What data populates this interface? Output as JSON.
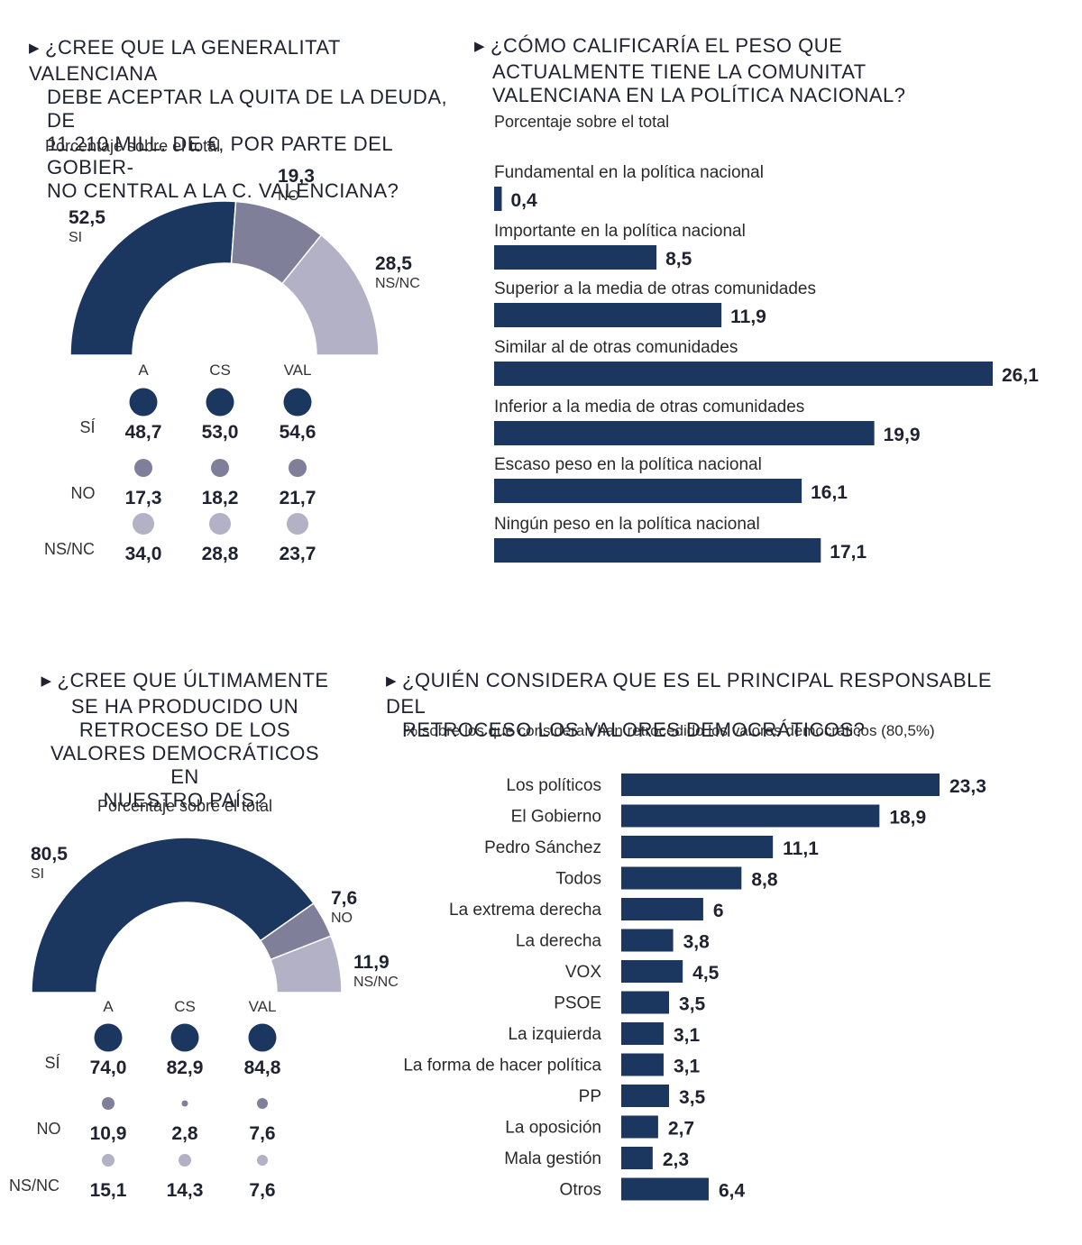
{
  "colors": {
    "si": "#1b365f",
    "no": "#807f99",
    "nsnc": "#b2b1c5",
    "bar": "#1b365f",
    "text": "#1f2230"
  },
  "chart_data": [
    {
      "type": "pie",
      "id": "c1",
      "title": "¿CREE QUE LA GENERALITAT VALENCIANA DEBE ACEPTAR LA QUITA DE LA DEUDA, DE 11.210 MILL. DE €, POR PARTE DEL GOBIERNO CENTRAL A LA C. VALENCIANA?",
      "title_lines": [
        "¿CREE QUE LA GENERALITAT VALENCIANA",
        "DEBE ACEPTAR LA QUITA DE LA DEUDA, DE",
        "11.210 MILL. DE €, POR PARTE DEL GOBIER-",
        "NO CENTRAL A LA C. VALENCIANA?"
      ],
      "subtitle": "Porcentaje sobre el total",
      "slices": [
        {
          "label": "SI",
          "value": 52.5,
          "value_text": "52,5"
        },
        {
          "label": "NO",
          "value": 19.3,
          "value_text": "19,3"
        },
        {
          "label": "NS/NC",
          "value": 28.5,
          "value_text": "28,5"
        }
      ],
      "breakdown": {
        "columns": [
          "A",
          "CS",
          "VAL"
        ],
        "rows": [
          {
            "label": "SÍ",
            "values": [
              48.7,
              53.0,
              54.6
            ],
            "values_text": [
              "48,7",
              "53,0",
              "54,6"
            ]
          },
          {
            "label": "NO",
            "values": [
              17.3,
              18.2,
              21.7
            ],
            "values_text": [
              "17,3",
              "18,2",
              "21,7"
            ]
          },
          {
            "label": "NS/NC",
            "values": [
              34.0,
              28.8,
              23.7
            ],
            "values_text": [
              "34,0",
              "28,8",
              "23,7"
            ]
          }
        ]
      }
    },
    {
      "type": "bar",
      "id": "c2",
      "title": "¿CÓMO CALIFICARÍA EL PESO QUE ACTUALMENTE TIENE LA COMUNITAT VALENCIANA EN LA POLÍTICA NACIONAL?",
      "title_lines": [
        "¿CÓMO CALIFICARÍA EL PESO QUE",
        "ACTUALMENTE TIENE LA COMUNITAT",
        "VALENCIANA EN LA POLÍTICA NACIONAL?"
      ],
      "subtitle": "Porcentaje sobre el total",
      "categories": [
        "Fundamental en la política nacional",
        "Importante en la política nacional",
        "Superior a la media de otras comunidades",
        "Similar al de otras comunidades",
        "Inferior a la media de otras comunidades",
        "Escaso peso en la política nacional",
        "Ningún peso en la política nacional"
      ],
      "values": [
        0.4,
        8.5,
        11.9,
        26.1,
        19.9,
        16.1,
        17.1
      ],
      "values_text": [
        "0,4",
        "8,5",
        "11,9",
        "26,1",
        "19,9",
        "16,1",
        "17,1"
      ]
    },
    {
      "type": "pie",
      "id": "c3",
      "title": "¿CREE QUE ÚLTIMAMENTE SE HA PRODUCIDO UN RETROCESO DE LOS VALORES DEMOCRÁTICOS EN NUESTRO PAÍS?",
      "title_lines": [
        "¿CREE QUE ÚLTIMAMENTE",
        "SE HA PRODUCIDO UN",
        "RETROCESO DE LOS",
        "VALORES DEMOCRÁTICOS EN",
        "NUESTRO PAÍS?"
      ],
      "subtitle": "Porcentaje sobre el total",
      "slices": [
        {
          "label": "SI",
          "value": 80.5,
          "value_text": "80,5"
        },
        {
          "label": "NO",
          "value": 7.6,
          "value_text": "7,6"
        },
        {
          "label": "NS/NC",
          "value": 11.9,
          "value_text": "11,9"
        }
      ],
      "breakdown": {
        "columns": [
          "A",
          "CS",
          "VAL"
        ],
        "rows": [
          {
            "label": "SÍ",
            "values": [
              74.0,
              82.9,
              84.8
            ],
            "values_text": [
              "74,0",
              "82,9",
              "84,8"
            ]
          },
          {
            "label": "NO",
            "values": [
              10.9,
              2.8,
              7.6
            ],
            "values_text": [
              "10,9",
              "2,8",
              "7,6"
            ]
          },
          {
            "label": "NS/NC",
            "values": [
              15.1,
              14.3,
              7.6
            ],
            "values_text": [
              "15,1",
              "14,3",
              "7,6"
            ]
          }
        ]
      }
    },
    {
      "type": "bar",
      "id": "c4",
      "title": "¿QUIÉN CONSIDERA QUE ES EL PRINCIPAL RESPONSABLE DEL RETROCESO LOS VALORES DEMOCRÁTICOS?",
      "title_lines": [
        "¿QUIÉN CONSIDERA QUE ES EL PRINCIPAL RESPONSABLE DEL",
        "RETROCESO LOS VALORES DEMOCRÁTICOS?"
      ],
      "subtitle": "% sobre los que consideran han retrocedido los valores democráticos (80,5%)",
      "categories": [
        "Los políticos",
        "El Gobierno",
        "Pedro Sánchez",
        "Todos",
        "La extrema derecha",
        "La derecha",
        "VOX",
        "PSOE",
        "La izquierda",
        "La forma de hacer política",
        "PP",
        "La oposición",
        "Mala gestión",
        "Otros"
      ],
      "values": [
        23.3,
        18.9,
        11.1,
        8.8,
        6,
        3.8,
        4.5,
        3.5,
        3.1,
        3.1,
        3.5,
        2.7,
        2.3,
        6.4
      ],
      "values_text": [
        "23,3",
        "18,9",
        "11,1",
        "8,8",
        "6",
        "3,8",
        "4,5",
        "3,5",
        "3,1",
        "3,1",
        "3,5",
        "2,7",
        "2,3",
        "6,4"
      ]
    }
  ]
}
